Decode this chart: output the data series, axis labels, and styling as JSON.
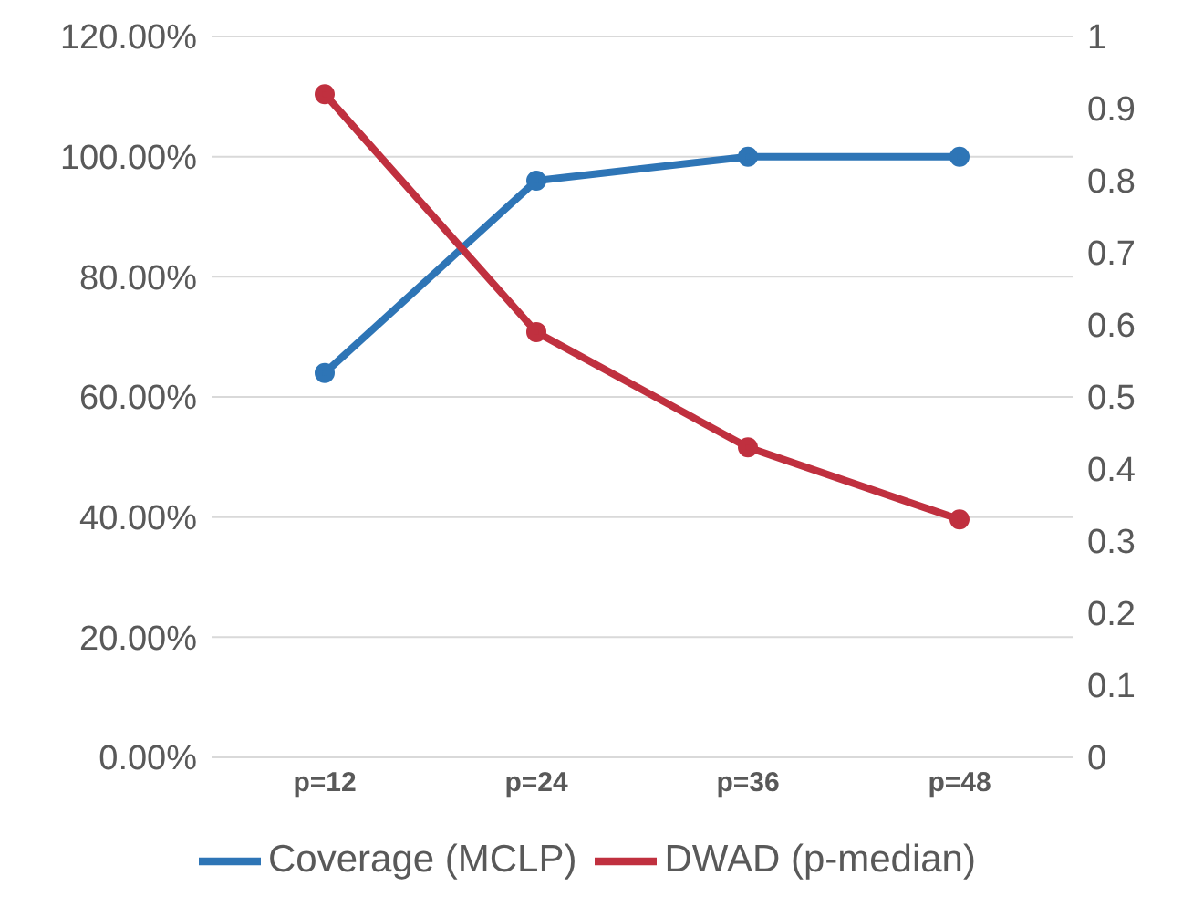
{
  "chart_data": {
    "type": "line",
    "categories": [
      "p=12",
      "p=24",
      "p=36",
      "p=48"
    ],
    "series": [
      {
        "name": "Coverage (MCLP)",
        "color": "#2e75b6",
        "values": [
          64,
          96,
          100,
          100
        ]
      },
      {
        "name": "DWAD (p-median)",
        "color": "#c0303f",
        "values": [
          0.92,
          0.59,
          0.43,
          0.33
        ],
        "axis": "y2"
      }
    ],
    "ylim": [
      0,
      120
    ],
    "yticks": [
      {
        "value": 0,
        "label": "0.00%"
      },
      {
        "value": 20,
        "label": "20.00%"
      },
      {
        "value": 40,
        "label": "40.00%"
      },
      {
        "value": 60,
        "label": "60.00%"
      },
      {
        "value": 80,
        "label": "80.00%"
      },
      {
        "value": 100,
        "label": "100.00%"
      },
      {
        "value": 120,
        "label": "120.00%"
      }
    ],
    "y2lim": [
      0,
      1
    ],
    "y2ticks": [
      0,
      0.1,
      0.2,
      0.3,
      0.4,
      0.5,
      0.6,
      0.7,
      0.8,
      0.9,
      1
    ],
    "grid": "y",
    "legend": "bottom",
    "marker": "circle",
    "line_style": "solid"
  }
}
